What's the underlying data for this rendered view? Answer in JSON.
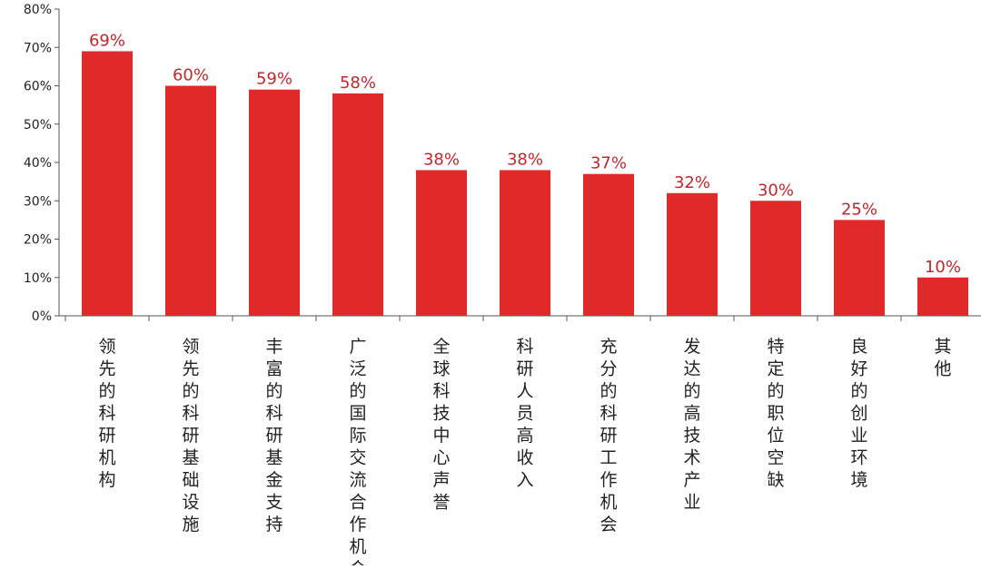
{
  "chart_data": {
    "type": "bar",
    "categories": [
      "领先的科研机构",
      "领先的科研基础设施",
      "丰富的科研基金支持",
      "广泛的国际交流合作机会",
      "全球科技中心声誉",
      "科研人员高收入",
      "充分的科研工作机会",
      "发达的高技术产业",
      "特定的职位空缺",
      "良好的创业环境",
      "其他"
    ],
    "values": [
      69,
      60,
      59,
      58,
      38,
      38,
      37,
      32,
      30,
      25,
      10
    ],
    "data_labels": [
      "69%",
      "60%",
      "59%",
      "58%",
      "38%",
      "38%",
      "37%",
      "32%",
      "30%",
      "25%",
      "10%"
    ],
    "y_ticks": [
      "0%",
      "10%",
      "20%",
      "30%",
      "40%",
      "50%",
      "60%",
      "70%",
      "80%"
    ],
    "ylim": [
      0,
      80
    ],
    "grid": false,
    "legend": "none",
    "title": "",
    "xlabel": "",
    "ylabel": "",
    "bar_color": "#e02a2a",
    "label_color": "#c1272d",
    "axis_color": "#555555"
  }
}
